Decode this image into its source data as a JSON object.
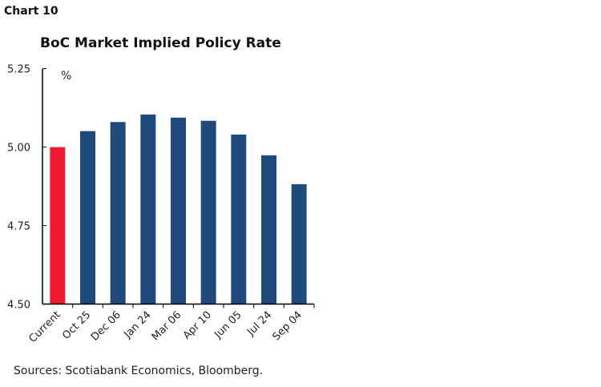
{
  "header": {
    "chart_number": "Chart 10"
  },
  "footer": {
    "source": "Sources: Scotiabank Economics, Bloomberg."
  },
  "chart_data": {
    "type": "bar",
    "title": "BoC Market Implied Policy Rate",
    "ylabel": "%",
    "xlabel": "",
    "ylim": [
      4.5,
      5.25
    ],
    "yticks": [
      "4.50",
      "4.75",
      "5.00",
      "5.25"
    ],
    "categories": [
      "Current",
      "Oct 25",
      "Dec 06",
      "Jan 24",
      "Mar 06",
      "Apr 10",
      "Jun 05",
      "Jul 24",
      "Sep 04"
    ],
    "values": [
      5.0,
      5.051,
      5.08,
      5.104,
      5.094,
      5.084,
      5.04,
      4.974,
      4.882
    ],
    "colors": {
      "current": "#ee1c2e",
      "forward": "#1f4a7c"
    },
    "grid": false
  }
}
